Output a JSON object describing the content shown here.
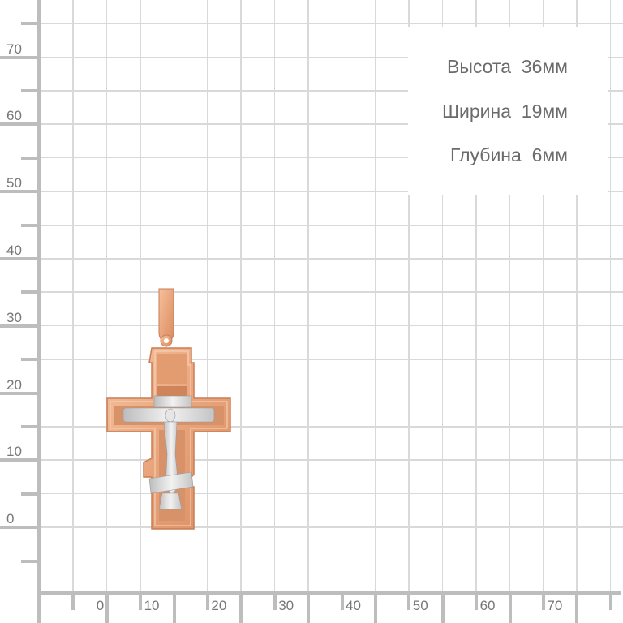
{
  "ruler": {
    "y_labels": [
      "70",
      "60",
      "50",
      "40",
      "30",
      "20",
      "10",
      "0"
    ],
    "x_labels": [
      "0",
      "10",
      "20",
      "30",
      "40",
      "50",
      "60",
      "70"
    ],
    "unit": "mm"
  },
  "specs": {
    "height": "Высота  36мм",
    "width": "Ширина  19мм",
    "depth": "Глубина  6мм"
  },
  "product": {
    "type": "cross pendant",
    "colors": {
      "gold": "#eba77e",
      "gold_dark": "#c97d55",
      "silver": "#d8d8d8"
    }
  }
}
